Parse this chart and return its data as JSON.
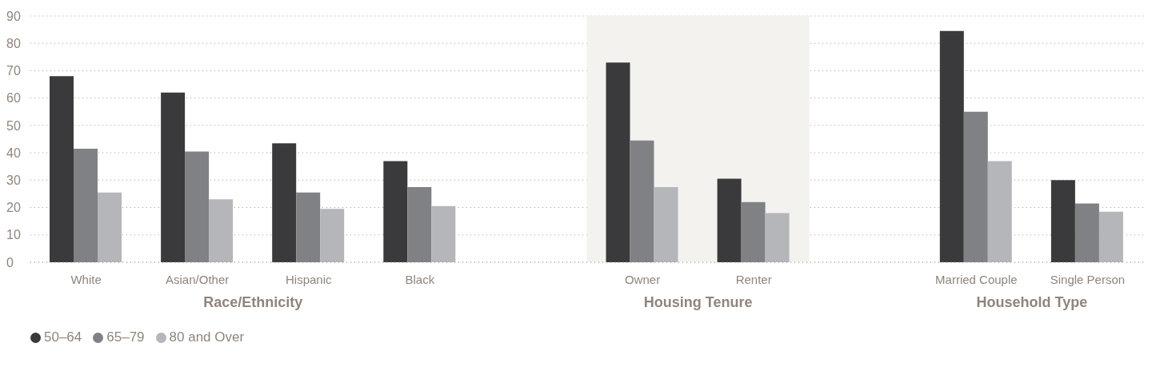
{
  "chart_data": {
    "type": "bar",
    "categories": [
      "White",
      "Asian/Other",
      "Hispanic",
      "Black",
      null,
      "Owner",
      "Renter",
      null,
      "Married Couple",
      "Single Person"
    ],
    "series": [
      {
        "name": "50–64",
        "color": "#3a3a3c",
        "values": [
          68,
          62,
          43.5,
          37,
          null,
          73,
          30.5,
          null,
          84.5,
          30
        ]
      },
      {
        "name": "65–79",
        "color": "#808185",
        "values": [
          41.5,
          40.5,
          25.5,
          27.5,
          null,
          44.5,
          22,
          null,
          55,
          21.5
        ]
      },
      {
        "name": "80 and Over",
        "color": "#b5b6ba",
        "values": [
          25.5,
          23,
          19.5,
          20.5,
          null,
          27.5,
          18,
          null,
          37,
          18.5
        ]
      }
    ],
    "annotations": [
      "Race/Ethnicity",
      "Housing Tenure",
      "Household Type"
    ],
    "bands": [
      {
        "axis": "x",
        "from": "Owner",
        "to": "Renter",
        "color": "#f4f2ef"
      }
    ],
    "ylim": [
      0,
      90
    ],
    "yticks": [
      0,
      10,
      20,
      30,
      40,
      50,
      60,
      70,
      80,
      90
    ],
    "grid": "y",
    "legend": "bottom left"
  }
}
